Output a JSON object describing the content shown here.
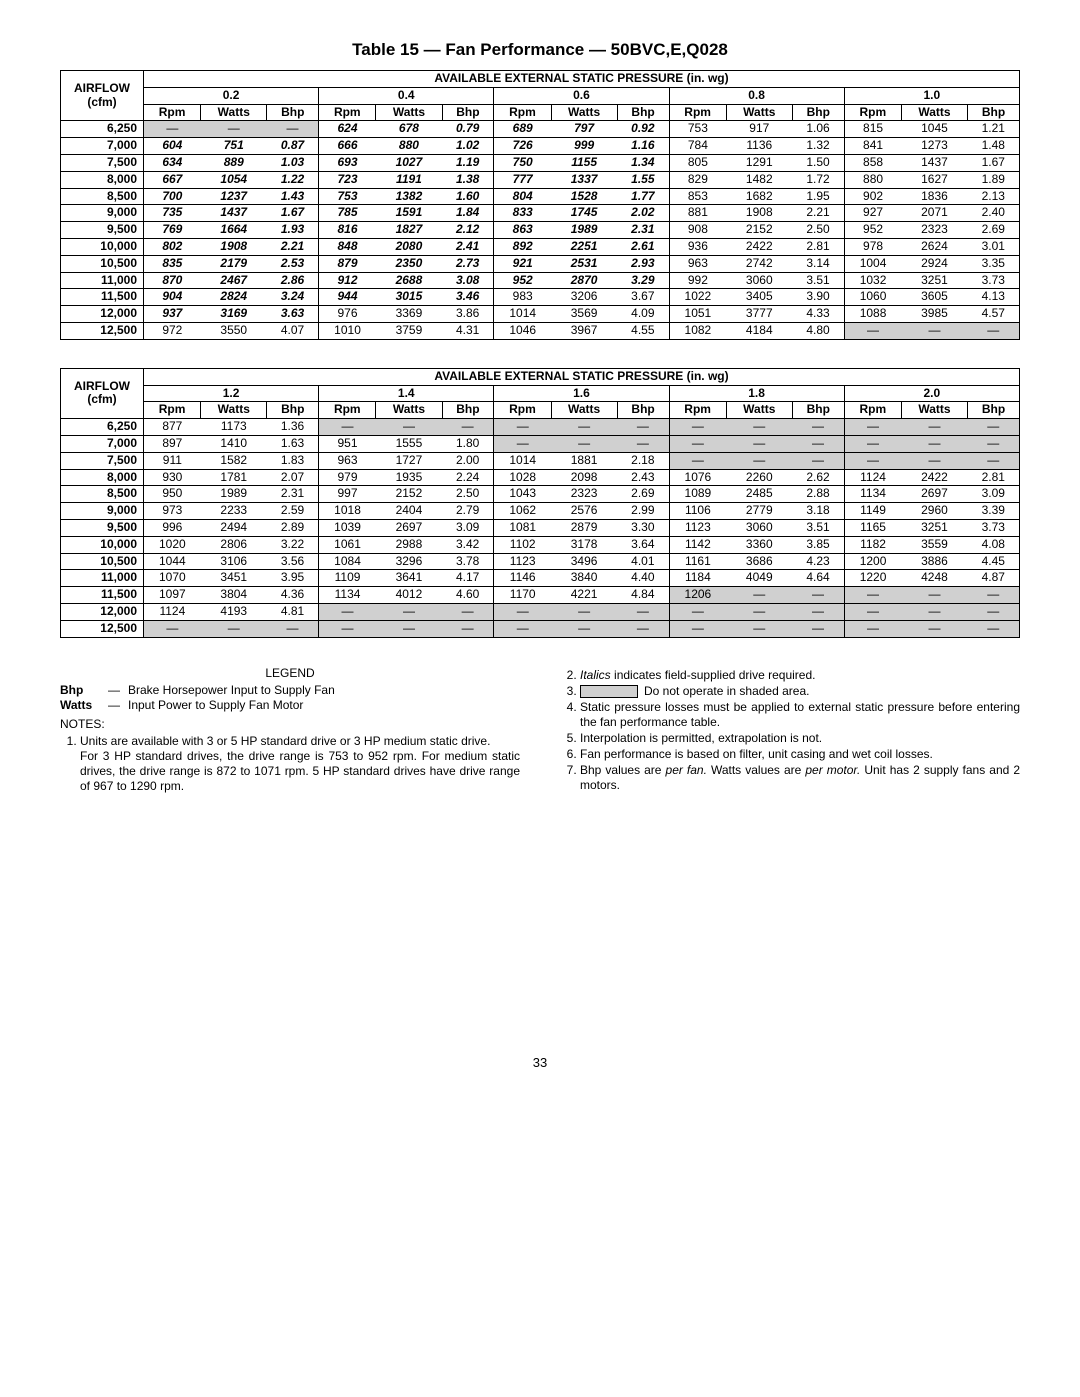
{
  "title": "Table 15 — Fan Performance — 50BVC,E,Q028",
  "sectionHeader": "AVAILABLE EXTERNAL STATIC PRESSURE (in. wg)",
  "airflowHeader": "AIRFLOW (cfm)",
  "subCols": [
    "Rpm",
    "Watts",
    "Bhp"
  ],
  "pressures1": [
    "0.2",
    "0.4",
    "0.6",
    "0.8",
    "1.0"
  ],
  "airflows": [
    "6,250",
    "7,000",
    "7,500",
    "8,000",
    "8,500",
    "9,000",
    "9,500",
    "10,000",
    "10,500",
    "11,000",
    "11,500",
    "12,000",
    "12,500"
  ],
  "table1": [
    [
      [
        "—",
        "—",
        "—",
        "s"
      ],
      [
        "624",
        "678",
        "0.79",
        "i"
      ],
      [
        "689",
        "797",
        "0.92",
        "i"
      ],
      [
        "753",
        "917",
        "1.06",
        ""
      ],
      [
        "815",
        "1045",
        "1.21",
        ""
      ]
    ],
    [
      [
        "604",
        "751",
        "0.87",
        "i"
      ],
      [
        "666",
        "880",
        "1.02",
        "i"
      ],
      [
        "726",
        "999",
        "1.16",
        "i"
      ],
      [
        "784",
        "1136",
        "1.32",
        ""
      ],
      [
        "841",
        "1273",
        "1.48",
        ""
      ]
    ],
    [
      [
        "634",
        "889",
        "1.03",
        "i"
      ],
      [
        "693",
        "1027",
        "1.19",
        "i"
      ],
      [
        "750",
        "1155",
        "1.34",
        "i"
      ],
      [
        "805",
        "1291",
        "1.50",
        ""
      ],
      [
        "858",
        "1437",
        "1.67",
        ""
      ]
    ],
    [
      [
        "667",
        "1054",
        "1.22",
        "i"
      ],
      [
        "723",
        "1191",
        "1.38",
        "i"
      ],
      [
        "777",
        "1337",
        "1.55",
        "i"
      ],
      [
        "829",
        "1482",
        "1.72",
        ""
      ],
      [
        "880",
        "1627",
        "1.89",
        ""
      ]
    ],
    [
      [
        "700",
        "1237",
        "1.43",
        "i"
      ],
      [
        "753",
        "1382",
        "1.60",
        "i"
      ],
      [
        "804",
        "1528",
        "1.77",
        "i"
      ],
      [
        "853",
        "1682",
        "1.95",
        ""
      ],
      [
        "902",
        "1836",
        "2.13",
        ""
      ]
    ],
    [
      [
        "735",
        "1437",
        "1.67",
        "i"
      ],
      [
        "785",
        "1591",
        "1.84",
        "i"
      ],
      [
        "833",
        "1745",
        "2.02",
        "i"
      ],
      [
        "881",
        "1908",
        "2.21",
        ""
      ],
      [
        "927",
        "2071",
        "2.40",
        ""
      ]
    ],
    [
      [
        "769",
        "1664",
        "1.93",
        "i"
      ],
      [
        "816",
        "1827",
        "2.12",
        "i"
      ],
      [
        "863",
        "1989",
        "2.31",
        "i"
      ],
      [
        "908",
        "2152",
        "2.50",
        ""
      ],
      [
        "952",
        "2323",
        "2.69",
        ""
      ]
    ],
    [
      [
        "802",
        "1908",
        "2.21",
        "i"
      ],
      [
        "848",
        "2080",
        "2.41",
        "i"
      ],
      [
        "892",
        "2251",
        "2.61",
        "i"
      ],
      [
        "936",
        "2422",
        "2.81",
        ""
      ],
      [
        "978",
        "2624",
        "3.01",
        ""
      ]
    ],
    [
      [
        "835",
        "2179",
        "2.53",
        "i"
      ],
      [
        "879",
        "2350",
        "2.73",
        "i"
      ],
      [
        "921",
        "2531",
        "2.93",
        "i"
      ],
      [
        "963",
        "2742",
        "3.14",
        ""
      ],
      [
        "1004",
        "2924",
        "3.35",
        ""
      ]
    ],
    [
      [
        "870",
        "2467",
        "2.86",
        "i"
      ],
      [
        "912",
        "2688",
        "3.08",
        "i"
      ],
      [
        "952",
        "2870",
        "3.29",
        "i"
      ],
      [
        "992",
        "3060",
        "3.51",
        ""
      ],
      [
        "1032",
        "3251",
        "3.73",
        ""
      ]
    ],
    [
      [
        "904",
        "2824",
        "3.24",
        "i"
      ],
      [
        "944",
        "3015",
        "3.46",
        "i"
      ],
      [
        "983",
        "3206",
        "3.67",
        ""
      ],
      [
        "1022",
        "3405",
        "3.90",
        ""
      ],
      [
        "1060",
        "3605",
        "4.13",
        ""
      ]
    ],
    [
      [
        "937",
        "3169",
        "3.63",
        "i"
      ],
      [
        "976",
        "3369",
        "3.86",
        ""
      ],
      [
        "1014",
        "3569",
        "4.09",
        ""
      ],
      [
        "1051",
        "3777",
        "4.33",
        ""
      ],
      [
        "1088",
        "3985",
        "4.57",
        ""
      ]
    ],
    [
      [
        "972",
        "3550",
        "4.07",
        ""
      ],
      [
        "1010",
        "3759",
        "4.31",
        ""
      ],
      [
        "1046",
        "3967",
        "4.55",
        ""
      ],
      [
        "1082",
        "4184",
        "4.80",
        ""
      ],
      [
        "—",
        "—",
        "—",
        "s"
      ]
    ]
  ],
  "pressures2": [
    "1.2",
    "1.4",
    "1.6",
    "1.8",
    "2.0"
  ],
  "table2": [
    [
      [
        "877",
        "1173",
        "1.36",
        ""
      ],
      [
        "—",
        "—",
        "—",
        "s"
      ],
      [
        "—",
        "—",
        "—",
        "s"
      ],
      [
        "—",
        "—",
        "—",
        "s"
      ],
      [
        "—",
        "—",
        "—",
        "s"
      ]
    ],
    [
      [
        "897",
        "1410",
        "1.63",
        ""
      ],
      [
        "951",
        "1555",
        "1.80",
        ""
      ],
      [
        "—",
        "—",
        "—",
        "s"
      ],
      [
        "—",
        "—",
        "—",
        "s"
      ],
      [
        "—",
        "—",
        "—",
        "s"
      ]
    ],
    [
      [
        "911",
        "1582",
        "1.83",
        ""
      ],
      [
        "963",
        "1727",
        "2.00",
        ""
      ],
      [
        "1014",
        "1881",
        "2.18",
        ""
      ],
      [
        "—",
        "—",
        "—",
        "s"
      ],
      [
        "—",
        "—",
        "—",
        "s"
      ]
    ],
    [
      [
        "930",
        "1781",
        "2.07",
        ""
      ],
      [
        "979",
        "1935",
        "2.24",
        ""
      ],
      [
        "1028",
        "2098",
        "2.43",
        ""
      ],
      [
        "1076",
        "2260",
        "2.62",
        ""
      ],
      [
        "1124",
        "2422",
        "2.81",
        ""
      ]
    ],
    [
      [
        "950",
        "1989",
        "2.31",
        ""
      ],
      [
        "997",
        "2152",
        "2.50",
        ""
      ],
      [
        "1043",
        "2323",
        "2.69",
        ""
      ],
      [
        "1089",
        "2485",
        "2.88",
        ""
      ],
      [
        "1134",
        "2697",
        "3.09",
        ""
      ]
    ],
    [
      [
        "973",
        "2233",
        "2.59",
        ""
      ],
      [
        "1018",
        "2404",
        "2.79",
        ""
      ],
      [
        "1062",
        "2576",
        "2.99",
        ""
      ],
      [
        "1106",
        "2779",
        "3.18",
        ""
      ],
      [
        "1149",
        "2960",
        "3.39",
        ""
      ]
    ],
    [
      [
        "996",
        "2494",
        "2.89",
        ""
      ],
      [
        "1039",
        "2697",
        "3.09",
        ""
      ],
      [
        "1081",
        "2879",
        "3.30",
        ""
      ],
      [
        "1123",
        "3060",
        "3.51",
        ""
      ],
      [
        "1165",
        "3251",
        "3.73",
        ""
      ]
    ],
    [
      [
        "1020",
        "2806",
        "3.22",
        ""
      ],
      [
        "1061",
        "2988",
        "3.42",
        ""
      ],
      [
        "1102",
        "3178",
        "3.64",
        ""
      ],
      [
        "1142",
        "3360",
        "3.85",
        ""
      ],
      [
        "1182",
        "3559",
        "4.08",
        ""
      ]
    ],
    [
      [
        "1044",
        "3106",
        "3.56",
        ""
      ],
      [
        "1084",
        "3296",
        "3.78",
        ""
      ],
      [
        "1123",
        "3496",
        "4.01",
        ""
      ],
      [
        "1161",
        "3686",
        "4.23",
        ""
      ],
      [
        "1200",
        "3886",
        "4.45",
        ""
      ]
    ],
    [
      [
        "1070",
        "3451",
        "3.95",
        ""
      ],
      [
        "1109",
        "3641",
        "4.17",
        ""
      ],
      [
        "1146",
        "3840",
        "4.40",
        ""
      ],
      [
        "1184",
        "4049",
        "4.64",
        ""
      ],
      [
        "1220",
        "4248",
        "4.87",
        ""
      ]
    ],
    [
      [
        "1097",
        "3804",
        "4.36",
        ""
      ],
      [
        "1134",
        "4012",
        "4.60",
        ""
      ],
      [
        "1170",
        "4221",
        "4.84",
        ""
      ],
      [
        "1206",
        "—",
        "—",
        "s"
      ],
      [
        "—",
        "—",
        "—",
        "s"
      ]
    ],
    [
      [
        "1124",
        "4193",
        "4.81",
        ""
      ],
      [
        "—",
        "—",
        "—",
        "s"
      ],
      [
        "—",
        "—",
        "—",
        "s"
      ],
      [
        "—",
        "—",
        "—",
        "s"
      ],
      [
        "—",
        "—",
        "—",
        "s"
      ]
    ],
    [
      [
        "—",
        "—",
        "—",
        "s"
      ],
      [
        "—",
        "—",
        "—",
        "s"
      ],
      [
        "—",
        "—",
        "—",
        "s"
      ],
      [
        "—",
        "—",
        "—",
        "s"
      ],
      [
        "—",
        "—",
        "—",
        "s"
      ]
    ]
  ],
  "legend": {
    "title": "LEGEND",
    "items": [
      {
        "term": "Bhp",
        "dash": "—",
        "def": "Brake Horsepower Input to Supply Fan"
      },
      {
        "term": "Watts",
        "dash": "—",
        "def": "Input Power to Supply Fan Motor"
      }
    ]
  },
  "notesTitle": "NOTES:",
  "notesLeft": [
    "Units are available with 3 or 5 HP standard drive or 3 HP medium static drive.\nFor 3 HP standard drives, the drive range is 753 to 952 rpm. For medium static drives, the drive range is 872 to 1071 rpm. 5 HP standard drives have drive range of 967 to 1290 rpm."
  ],
  "notesRight": [
    {
      "html": "<i>Italics</i> indicates field-supplied drive required."
    },
    {
      "html": "<span class=\"shade-swatch\"></span>Do not operate in shaded area."
    },
    {
      "html": "Static pressure losses must be applied to external static pressure before entering the fan performance table."
    },
    {
      "html": "Interpolation is permitted, extrapolation is not."
    },
    {
      "html": "Fan performance is based on filter, unit casing and wet coil losses."
    },
    {
      "html": "Bhp values are <i>per fan.</i> Watts values are <i>per motor.</i> Unit has 2 supply fans and 2 motors."
    }
  ],
  "pageNumber": "33"
}
